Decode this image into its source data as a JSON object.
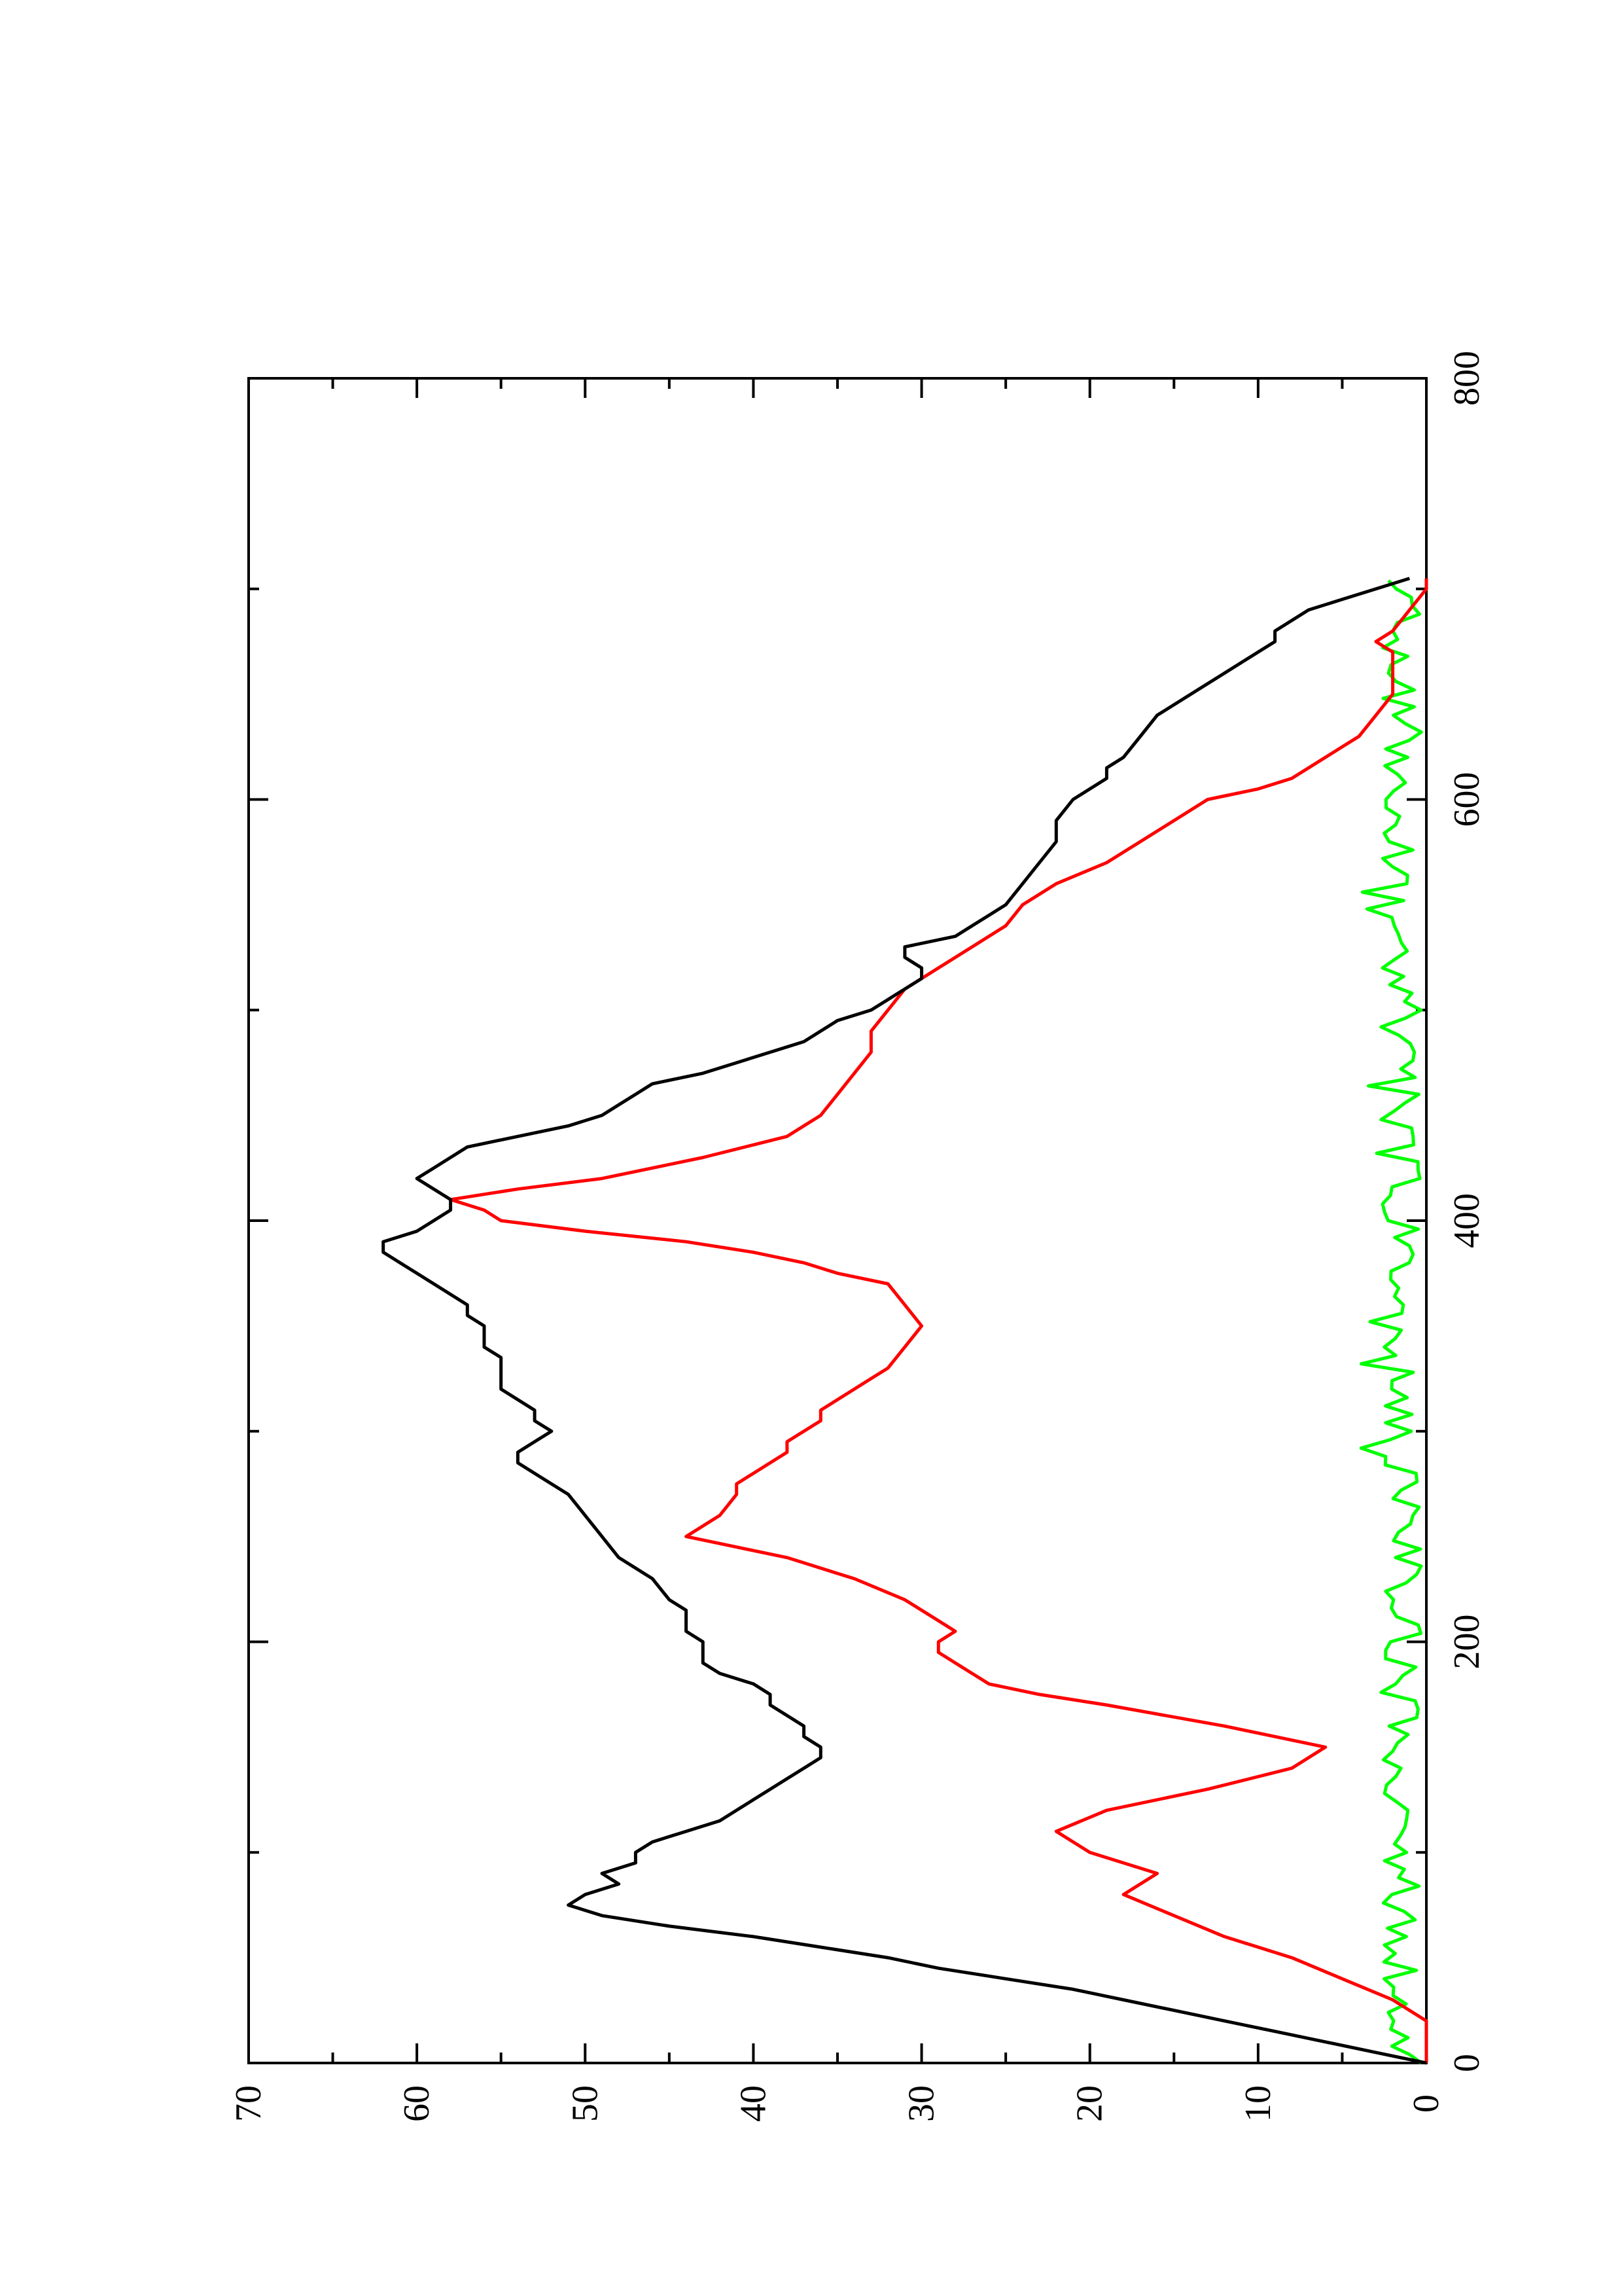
{
  "chart_data": {
    "type": "line",
    "title": "",
    "xlabel": "",
    "ylabel": "",
    "orientation": "rotated 90° counter-clockwise (page in landscape)",
    "xlim": [
      0,
      800
    ],
    "ylim": [
      0,
      70
    ],
    "x_ticks": [
      0,
      200,
      400,
      600,
      800
    ],
    "x_tick_labels": [
      "0",
      "200",
      "400",
      "600",
      "800"
    ],
    "x_minor_ticks": [
      100,
      300,
      500,
      700
    ],
    "y_ticks": [
      0,
      10,
      20,
      30,
      40,
      50,
      60,
      70
    ],
    "y_tick_labels": [
      "0",
      "10",
      "20",
      "30",
      "40",
      "50",
      "60",
      "70"
    ],
    "y_minor_ticks": [
      5,
      15,
      25,
      35,
      45,
      55,
      65
    ],
    "grid": false,
    "series": [
      {
        "color": "#000000",
        "x": [
          0,
          5,
          10,
          15,
          20,
          25,
          30,
          35,
          40,
          45,
          50,
          55,
          60,
          65,
          70,
          75,
          80,
          85,
          90,
          95,
          100,
          105,
          110,
          115,
          120,
          125,
          130,
          135,
          140,
          145,
          150,
          155,
          160,
          165,
          170,
          175,
          180,
          185,
          190,
          195,
          200,
          205,
          210,
          215,
          220,
          230,
          240,
          250,
          260,
          270,
          275,
          280,
          285,
          290,
          295,
          300,
          305,
          310,
          315,
          320,
          325,
          330,
          335,
          340,
          345,
          350,
          355,
          360,
          365,
          370,
          375,
          380,
          385,
          390,
          395,
          400,
          405,
          410,
          415,
          420,
          425,
          430,
          435,
          440,
          445,
          450,
          455,
          460,
          465,
          470,
          475,
          480,
          485,
          490,
          495,
          500,
          505,
          510,
          515,
          520,
          525,
          530,
          535,
          540,
          545,
          550,
          560,
          570,
          580,
          590,
          600,
          605,
          610,
          615,
          620,
          630,
          640,
          650,
          660,
          665,
          670,
          675,
          680,
          685,
          690,
          695,
          700,
          705
        ],
        "y": [
          0,
          3,
          6,
          9,
          12,
          15,
          18,
          21,
          25,
          29,
          32,
          36,
          40,
          45,
          49,
          51,
          50,
          48,
          49,
          47,
          47,
          46,
          44,
          42,
          41,
          40,
          39,
          38,
          37,
          36,
          36,
          37,
          37,
          38,
          39,
          39,
          40,
          42,
          43,
          43,
          43,
          44,
          44,
          44,
          45,
          46,
          48,
          49,
          50,
          51,
          52,
          53,
          54,
          54,
          53,
          52,
          53,
          53,
          54,
          55,
          55,
          55,
          55,
          56,
          56,
          56,
          57,
          57,
          58,
          59,
          60,
          61,
          62,
          62,
          60,
          59,
          58,
          58,
          59,
          60,
          59,
          58,
          57,
          54,
          51,
          49,
          48,
          47,
          46,
          43,
          41,
          39,
          37,
          36,
          35,
          33,
          32,
          31,
          30,
          30,
          31,
          31,
          28,
          27,
          26,
          25,
          24,
          23,
          22,
          22,
          21,
          20,
          19,
          19,
          18,
          17,
          16,
          14,
          12,
          11,
          10,
          9,
          9,
          8,
          7,
          5,
          3,
          1
        ]
      },
      {
        "color": "#ff0000",
        "x": [
          0,
          10,
          20,
          30,
          40,
          50,
          60,
          70,
          80,
          90,
          100,
          110,
          120,
          130,
          140,
          150,
          160,
          170,
          175,
          180,
          185,
          190,
          195,
          200,
          205,
          210,
          220,
          230,
          240,
          245,
          250,
          255,
          260,
          270,
          275,
          280,
          285,
          290,
          295,
          300,
          305,
          310,
          315,
          320,
          325,
          330,
          340,
          350,
          360,
          370,
          375,
          380,
          385,
          390,
          395,
          400,
          405,
          410,
          415,
          420,
          430,
          440,
          450,
          460,
          470,
          480,
          490,
          500,
          510,
          520,
          530,
          540,
          550,
          560,
          570,
          580,
          590,
          600,
          605,
          610,
          620,
          630,
          640,
          650,
          660,
          670,
          675,
          680,
          690,
          700,
          705
        ],
        "y": [
          0,
          0,
          0,
          2,
          5,
          8,
          12,
          15,
          18,
          16,
          20,
          22,
          19,
          13,
          8,
          6,
          12,
          19,
          23,
          26,
          27,
          28,
          29,
          29,
          28,
          29,
          31,
          34,
          38,
          41,
          44,
          43,
          42,
          41,
          41,
          40,
          39,
          38,
          38,
          37,
          36,
          36,
          35,
          34,
          33,
          32,
          31,
          30,
          31,
          32,
          35,
          37,
          40,
          44,
          50,
          55,
          56,
          58,
          54,
          49,
          43,
          38,
          36,
          35,
          34,
          33,
          33,
          32,
          31,
          29,
          27,
          25,
          24,
          22,
          19,
          17,
          15,
          13,
          10,
          8,
          6,
          4,
          3,
          2,
          2,
          2,
          3,
          2,
          1,
          0,
          0
        ]
      },
      {
        "color": "#00ff00",
        "x": [],
        "y": []
      }
    ]
  }
}
